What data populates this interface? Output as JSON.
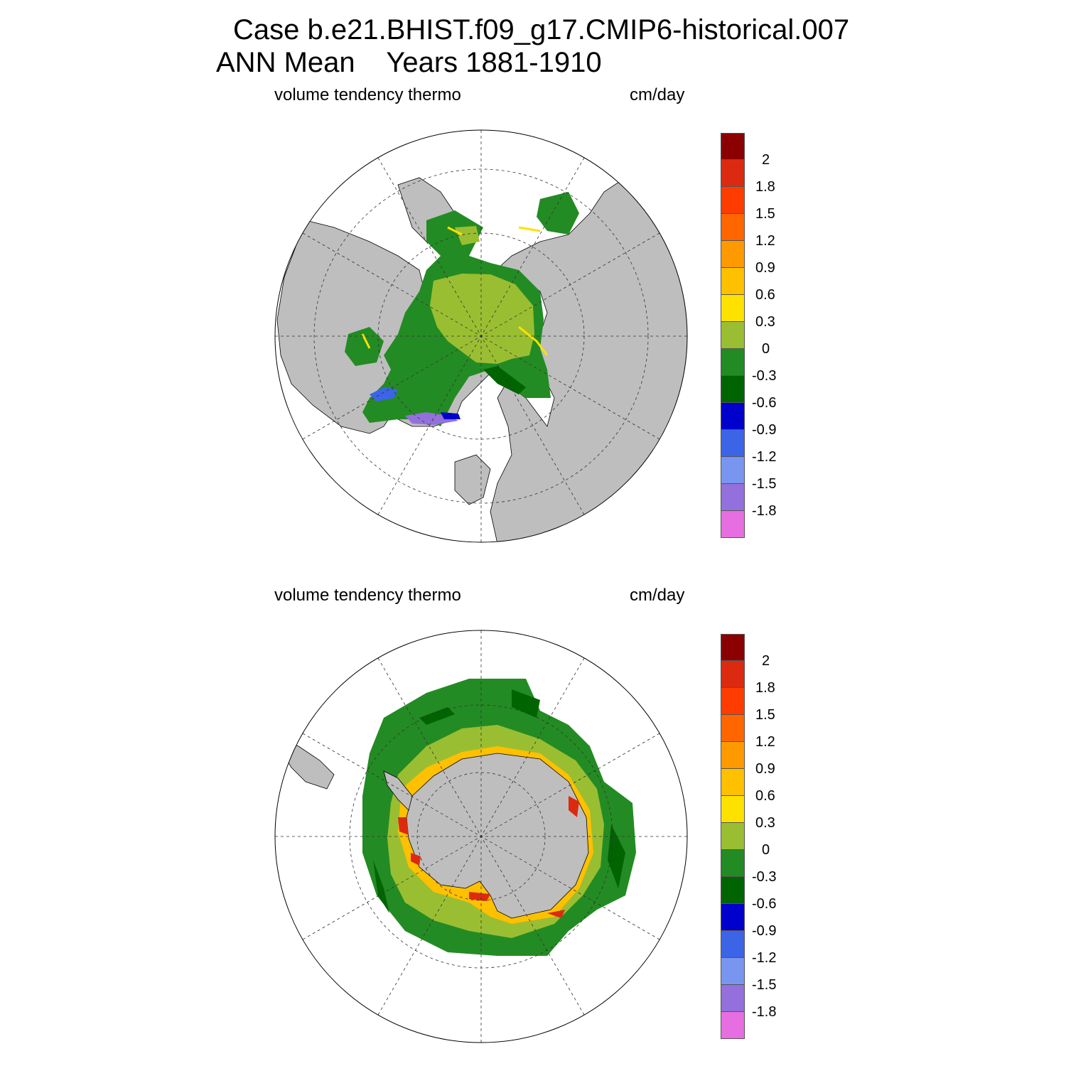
{
  "case_title": "Case b.e21.BHIST.f09_g17.CMIP6-historical.007",
  "period_title": "ANN Mean    Years 1881-1910",
  "panels": [
    {
      "id": "nh",
      "variable_label": "volume tendency thermo",
      "units_label": "cm/day"
    },
    {
      "id": "sh",
      "variable_label": "volume tendency thermo",
      "units_label": "cm/day"
    }
  ],
  "colorbar": {
    "labels": [
      "2",
      "1.8",
      "1.5",
      "1.2",
      "0.9",
      "0.6",
      "0.3",
      "0",
      "-0.3",
      "-0.6",
      "-0.9",
      "-1.2",
      "-1.5",
      "-1.8"
    ],
    "colors": [
      "#8b0000",
      "#dc2a10",
      "#ff3c00",
      "#ff6600",
      "#ff9900",
      "#ffc000",
      "#ffe100",
      "#9abe32",
      "#238b23",
      "#006400",
      "#0000cd",
      "#3c64e6",
      "#7896f0",
      "#9370db",
      "#e66ee1"
    ]
  },
  "colors": {
    "land": "#bebebe",
    "ocean": "#ffffff",
    "ice_thin": "#9abe32",
    "ice_mid": "#238b23",
    "ice_thick": "#006400"
  }
}
